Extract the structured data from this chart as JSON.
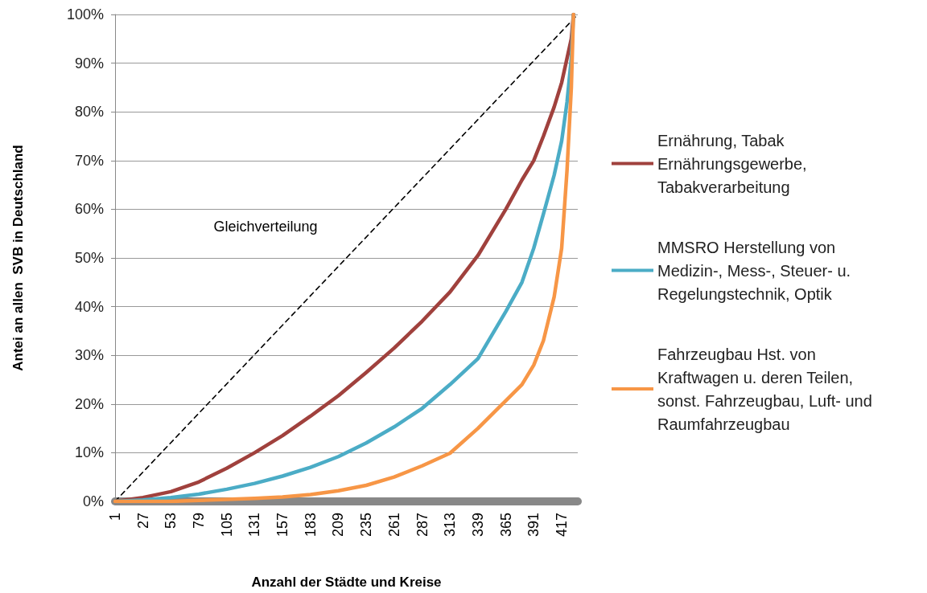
{
  "chart_data": {
    "type": "line",
    "xlabel": "Anzahl der Städte und Kreise",
    "ylabel": "Antei an allen  SVB in Deutschland",
    "xlim": [
      1,
      432
    ],
    "xticks": [
      1,
      27,
      53,
      79,
      105,
      131,
      157,
      183,
      209,
      235,
      261,
      287,
      313,
      339,
      365,
      391,
      417
    ],
    "ylim": [
      0,
      100
    ],
    "yticks": [
      {
        "value": 0,
        "label": "0%"
      },
      {
        "value": 10,
        "label": "10%"
      },
      {
        "value": 20,
        "label": "20%"
      },
      {
        "value": 30,
        "label": "30%"
      },
      {
        "value": 40,
        "label": "40%"
      },
      {
        "value": 50,
        "label": "50%"
      },
      {
        "value": 60,
        "label": "60%"
      },
      {
        "value": 70,
        "label": "70%"
      },
      {
        "value": 80,
        "label": "80%"
      },
      {
        "value": 90,
        "label": "90%"
      },
      {
        "value": 100,
        "label": "100%"
      }
    ],
    "grid": "y",
    "legend": "right",
    "marker": "none",
    "line_style": "solid",
    "x": [
      1,
      27,
      53,
      79,
      105,
      131,
      157,
      183,
      209,
      235,
      261,
      287,
      313,
      339,
      365,
      380,
      391,
      400,
      410,
      417,
      422,
      426,
      428
    ],
    "series": [
      {
        "name": "Ernährung, Tabak Ernährungsgewerbe, Tabakverarbeitung",
        "color": "#a0413d",
        "values": [
          0,
          0.8,
          2,
          4,
          6.8,
          10,
          13.5,
          17.5,
          21.7,
          26.5,
          31.5,
          37,
          43,
          50.5,
          60,
          66,
          70,
          75,
          81,
          86,
          91,
          95,
          100
        ]
      },
      {
        "name": "MMSRO Herstellung von Medizin-, Mess-, Steuer- u. Regelungstechnik, Optik",
        "color": "#4bacc6",
        "values": [
          0,
          0.3,
          0.8,
          1.5,
          2.5,
          3.7,
          5.2,
          7,
          9.2,
          12,
          15.3,
          19.1,
          24,
          29.3,
          39,
          45,
          52,
          59,
          67,
          74,
          82,
          91,
          100
        ]
      },
      {
        "name": "Fahrzeugbau Hst. von Kraftwagen u. deren Teilen, sonst. Fahrzeugbau, Luft- und Raumfahrzeugbau",
        "color": "#f79646",
        "values": [
          0,
          0,
          0,
          0.2,
          0.4,
          0.6,
          0.9,
          1.4,
          2.2,
          3.3,
          5,
          7.3,
          9.9,
          15,
          20.7,
          24,
          28,
          33,
          42,
          52,
          68,
          85,
          100
        ]
      },
      {
        "name": "Gleichverteilung",
        "color": "#000000",
        "line_style": "dashed",
        "x": [
          1,
          432
        ],
        "values": [
          0,
          100
        ]
      }
    ]
  }
}
